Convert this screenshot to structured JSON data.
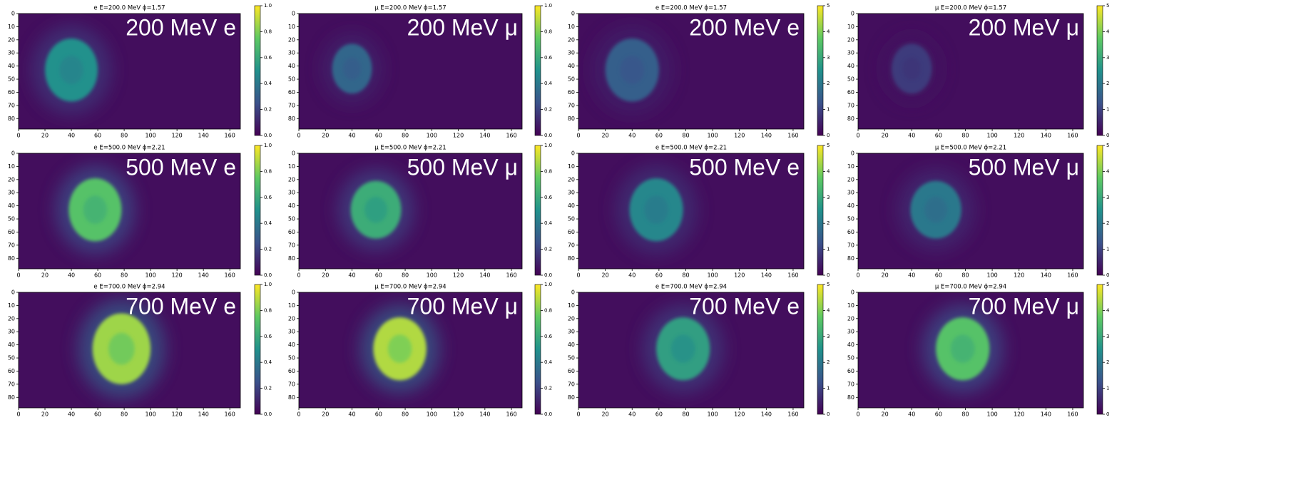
{
  "chart_data": [
    {
      "type": "heatmap",
      "title": "e E=200.0 MeV ϕ=1.57",
      "label": "200 MeV e",
      "xlim": [
        0,
        168
      ],
      "ylim": [
        88,
        0
      ],
      "xticks": [
        0,
        20,
        40,
        60,
        80,
        100,
        120,
        140,
        160
      ],
      "yticks": [
        0,
        10,
        20,
        30,
        40,
        50,
        60,
        70,
        80
      ],
      "clim": [
        0,
        1
      ],
      "cticks": [
        {
          "value": 0,
          "label": "0.0"
        },
        {
          "value": 0.2,
          "label": "0.2"
        },
        {
          "value": 0.4,
          "label": "0.4"
        },
        {
          "value": 0.6,
          "label": "0.6"
        },
        {
          "value": 0.8,
          "label": "0.8"
        },
        {
          "value": 1,
          "label": "1.0"
        }
      ],
      "blob": {
        "cx": 40,
        "cy": 43,
        "rx": 20,
        "ry": 24,
        "value": 0.5
      }
    },
    {
      "type": "heatmap",
      "title": "μ E=200.0 MeV ϕ=1.57",
      "label": "200 MeV μ",
      "xlim": [
        0,
        168
      ],
      "ylim": [
        88,
        0
      ],
      "xticks": [
        0,
        20,
        40,
        60,
        80,
        100,
        120,
        140,
        160
      ],
      "yticks": [
        0,
        10,
        20,
        30,
        40,
        50,
        60,
        70,
        80
      ],
      "clim": [
        0,
        1
      ],
      "cticks": [
        {
          "value": 0,
          "label": "0.0"
        },
        {
          "value": 0.2,
          "label": "0.2"
        },
        {
          "value": 0.4,
          "label": "0.4"
        },
        {
          "value": 0.6,
          "label": "0.6"
        },
        {
          "value": 0.8,
          "label": "0.8"
        },
        {
          "value": 1,
          "label": "1.0"
        }
      ],
      "blob": {
        "cx": 40,
        "cy": 42,
        "rx": 15,
        "ry": 19,
        "value": 0.33
      }
    },
    {
      "type": "heatmap",
      "title": "e E=200.0 MeV ϕ=1.57",
      "label": "200 MeV e",
      "xlim": [
        0,
        168
      ],
      "ylim": [
        88,
        0
      ],
      "xticks": [
        0,
        20,
        40,
        60,
        80,
        100,
        120,
        140,
        160
      ],
      "yticks": [
        0,
        10,
        20,
        30,
        40,
        50,
        60,
        70,
        80
      ],
      "clim": [
        0,
        5
      ],
      "cticks": [
        0,
        1,
        2,
        3,
        4,
        5
      ],
      "blob": {
        "cx": 40,
        "cy": 43,
        "rx": 20,
        "ry": 24,
        "value": 1.5
      }
    },
    {
      "type": "heatmap",
      "title": "μ E=200.0 MeV ϕ=1.57",
      "label": "200 MeV μ",
      "xlim": [
        0,
        168
      ],
      "ylim": [
        88,
        0
      ],
      "xticks": [
        0,
        20,
        40,
        60,
        80,
        100,
        120,
        140,
        160
      ],
      "yticks": [
        0,
        10,
        20,
        30,
        40,
        50,
        60,
        70,
        80
      ],
      "clim": [
        0,
        5
      ],
      "cticks": [
        0,
        1,
        2,
        3,
        4,
        5
      ],
      "blob": {
        "cx": 40,
        "cy": 42,
        "rx": 15,
        "ry": 19,
        "value": 0.9
      }
    },
    {
      "type": "heatmap",
      "title": "e E=500.0 MeV ϕ=2.21",
      "label": "500 MeV e",
      "xlim": [
        0,
        168
      ],
      "ylim": [
        88,
        0
      ],
      "xticks": [
        0,
        20,
        40,
        60,
        80,
        100,
        120,
        140,
        160
      ],
      "yticks": [
        0,
        10,
        20,
        30,
        40,
        50,
        60,
        70,
        80
      ],
      "clim": [
        0,
        1
      ],
      "cticks": [
        {
          "value": 0,
          "label": "0.0"
        },
        {
          "value": 0.2,
          "label": "0.2"
        },
        {
          "value": 0.4,
          "label": "0.4"
        },
        {
          "value": 0.6,
          "label": "0.6"
        },
        {
          "value": 0.8,
          "label": "0.8"
        },
        {
          "value": 1,
          "label": "1.0"
        }
      ],
      "blob": {
        "cx": 58,
        "cy": 43,
        "rx": 20,
        "ry": 24,
        "value": 0.72
      }
    },
    {
      "type": "heatmap",
      "title": "μ E=500.0 MeV ϕ=2.21",
      "label": "500 MeV μ",
      "xlim": [
        0,
        168
      ],
      "ylim": [
        88,
        0
      ],
      "xticks": [
        0,
        20,
        40,
        60,
        80,
        100,
        120,
        140,
        160
      ],
      "yticks": [
        0,
        10,
        20,
        30,
        40,
        50,
        60,
        70,
        80
      ],
      "clim": [
        0,
        1
      ],
      "cticks": [
        {
          "value": 0,
          "label": "0.0"
        },
        {
          "value": 0.2,
          "label": "0.2"
        },
        {
          "value": 0.4,
          "label": "0.4"
        },
        {
          "value": 0.6,
          "label": "0.6"
        },
        {
          "value": 0.8,
          "label": "0.8"
        },
        {
          "value": 1,
          "label": "1.0"
        }
      ],
      "blob": {
        "cx": 58,
        "cy": 43,
        "rx": 19,
        "ry": 22,
        "value": 0.62
      }
    },
    {
      "type": "heatmap",
      "title": "e E=500.0 MeV ϕ=2.21",
      "label": "500 MeV e",
      "xlim": [
        0,
        168
      ],
      "ylim": [
        88,
        0
      ],
      "xticks": [
        0,
        20,
        40,
        60,
        80,
        100,
        120,
        140,
        160
      ],
      "yticks": [
        0,
        10,
        20,
        30,
        40,
        50,
        60,
        70,
        80
      ],
      "clim": [
        0,
        5
      ],
      "cticks": [
        0,
        1,
        2,
        3,
        4,
        5
      ],
      "blob": {
        "cx": 58,
        "cy": 43,
        "rx": 20,
        "ry": 24,
        "value": 2.3
      }
    },
    {
      "type": "heatmap",
      "title": "μ E=500.0 MeV ϕ=2.21",
      "label": "500 MeV μ",
      "xlim": [
        0,
        168
      ],
      "ylim": [
        88,
        0
      ],
      "xticks": [
        0,
        20,
        40,
        60,
        80,
        100,
        120,
        140,
        160
      ],
      "yticks": [
        0,
        10,
        20,
        30,
        40,
        50,
        60,
        70,
        80
      ],
      "clim": [
        0,
        5
      ],
      "cticks": [
        0,
        1,
        2,
        3,
        4,
        5
      ],
      "blob": {
        "cx": 58,
        "cy": 43,
        "rx": 19,
        "ry": 22,
        "value": 2.0
      }
    },
    {
      "type": "heatmap",
      "title": "e E=700.0 MeV ϕ=2.94",
      "label": "700 MeV e",
      "xlim": [
        0,
        168
      ],
      "ylim": [
        88,
        0
      ],
      "xticks": [
        0,
        20,
        40,
        60,
        80,
        100,
        120,
        140,
        160
      ],
      "yticks": [
        0,
        10,
        20,
        30,
        40,
        50,
        60,
        70,
        80
      ],
      "clim": [
        0,
        1
      ],
      "cticks": [
        {
          "value": 0,
          "label": "0.0"
        },
        {
          "value": 0.2,
          "label": "0.2"
        },
        {
          "value": 0.4,
          "label": "0.4"
        },
        {
          "value": 0.6,
          "label": "0.6"
        },
        {
          "value": 0.8,
          "label": "0.8"
        },
        {
          "value": 1,
          "label": "1.0"
        }
      ],
      "blob": {
        "cx": 78,
        "cy": 43,
        "rx": 22,
        "ry": 27,
        "value": 0.85
      }
    },
    {
      "type": "heatmap",
      "title": "μ E=700.0 MeV ϕ=2.94",
      "label": "700 MeV μ",
      "xlim": [
        0,
        168
      ],
      "ylim": [
        88,
        0
      ],
      "xticks": [
        0,
        20,
        40,
        60,
        80,
        100,
        120,
        140,
        160
      ],
      "yticks": [
        0,
        10,
        20,
        30,
        40,
        50,
        60,
        70,
        80
      ],
      "clim": [
        0,
        1
      ],
      "cticks": [
        {
          "value": 0,
          "label": "0.0"
        },
        {
          "value": 0.2,
          "label": "0.2"
        },
        {
          "value": 0.4,
          "label": "0.4"
        },
        {
          "value": 0.6,
          "label": "0.6"
        },
        {
          "value": 0.8,
          "label": "0.8"
        },
        {
          "value": 1,
          "label": "1.0"
        }
      ],
      "blob": {
        "cx": 76,
        "cy": 43,
        "rx": 20,
        "ry": 24,
        "value": 0.88
      }
    },
    {
      "type": "heatmap",
      "title": "e E=700.0 MeV ϕ=2.94",
      "label": "700 MeV e",
      "xlim": [
        0,
        168
      ],
      "ylim": [
        88,
        0
      ],
      "xticks": [
        0,
        20,
        40,
        60,
        80,
        100,
        120,
        140,
        160
      ],
      "yticks": [
        0,
        10,
        20,
        30,
        40,
        50,
        60,
        70,
        80
      ],
      "clim": [
        0,
        5
      ],
      "cticks": [
        0,
        1,
        2,
        3,
        4,
        5
      ],
      "blob": {
        "cx": 78,
        "cy": 43,
        "rx": 20,
        "ry": 24,
        "value": 2.8
      }
    },
    {
      "type": "heatmap",
      "title": "μ E=700.0 MeV ϕ=2.94",
      "label": "700 MeV μ",
      "xlim": [
        0,
        168
      ],
      "ylim": [
        88,
        0
      ],
      "xticks": [
        0,
        20,
        40,
        60,
        80,
        100,
        120,
        140,
        160
      ],
      "yticks": [
        0,
        10,
        20,
        30,
        40,
        50,
        60,
        70,
        80
      ],
      "clim": [
        0,
        5
      ],
      "cticks": [
        0,
        1,
        2,
        3,
        4,
        5
      ],
      "blob": {
        "cx": 78,
        "cy": 43,
        "rx": 20,
        "ry": 24,
        "value": 3.6
      }
    }
  ]
}
